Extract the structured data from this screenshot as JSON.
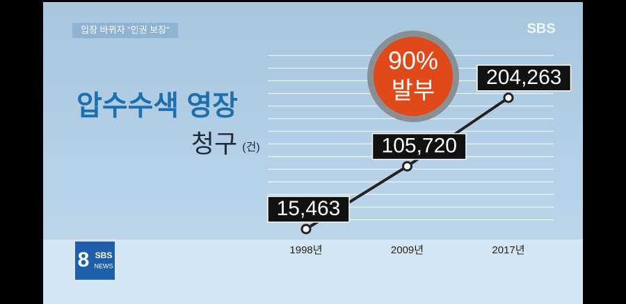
{
  "header": {
    "tag": "입장 바뀌자 \"인권 보장\"",
    "channel": "SBS"
  },
  "logo": {
    "number": "8",
    "brand": "SBS",
    "label": "NEWS"
  },
  "chart_data": {
    "type": "line",
    "title": "압수수색 영장",
    "subtitle": "청구",
    "unit": "(건)",
    "annotation": {
      "value": "90%",
      "label": "발부"
    },
    "categories": [
      "1998년",
      "2009년",
      "2017년"
    ],
    "values": [
      15463,
      105720,
      204263
    ],
    "value_labels": [
      "15,463",
      "105,720",
      "204,263"
    ],
    "ylim": [
      0,
      265000
    ],
    "color": "#222222"
  }
}
